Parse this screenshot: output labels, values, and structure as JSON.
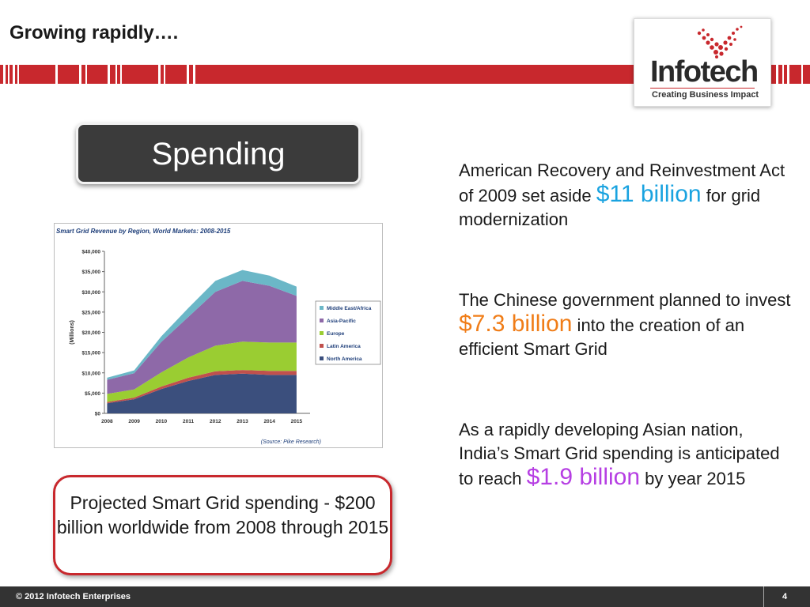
{
  "slide": {
    "title": "Growing rapidly….",
    "spending_label": "Spending",
    "projected_text": "Projected Smart Grid spending - $200 billion worldwide from 2008 through 2015",
    "footer_copyright": "© 2012 Infotech Enterprises",
    "page_number": "4"
  },
  "logo": {
    "name": "Infotech",
    "tagline": "Creating Business Impact",
    "icon": "checkmark-dots-icon",
    "brand_color": "#c8282d"
  },
  "bullets": [
    {
      "pre": "American Recovery and Reinvestment Act of 2009 set aside ",
      "highlight": "$11 billion",
      "post": " for grid modernization",
      "color": "#1aa3e0"
    },
    {
      "pre": "The Chinese government planned to invest ",
      "highlight": "$7.3 billion",
      "post": " into the creation of an efficient Smart Grid",
      "color": "#f07d18"
    },
    {
      "pre": "As a rapidly developing Asian nation, India’s Smart Grid spending is anticipated to reach ",
      "highlight": "$1.9 billion",
      "post": " by year 2015",
      "color": "#b63fe3"
    }
  ],
  "chart_data": {
    "type": "area",
    "title": "Smart Grid Revenue by Region, World Markets: 2008-2015",
    "ylabel": "(Millions)",
    "source": "(Source: Pike Research)",
    "x": [
      "2008",
      "2009",
      "2010",
      "2011",
      "2012",
      "2013",
      "2014",
      "2015"
    ],
    "ylim": [
      0,
      40000
    ],
    "yticks": [
      "$0",
      "$5,000",
      "$10,000",
      "$15,000",
      "$20,000",
      "$25,000",
      "$30,000",
      "$35,000",
      "$40,000"
    ],
    "stacked": true,
    "series": [
      {
        "name": "North America",
        "color": "#3b4f7d",
        "values": [
          2500,
          3500,
          6000,
          8000,
          9500,
          9800,
          9500,
          9500
        ]
      },
      {
        "name": "Latin America",
        "color": "#c0504d",
        "values": [
          300,
          400,
          600,
          800,
          900,
          900,
          1000,
          1000
        ]
      },
      {
        "name": "Europe",
        "color": "#9acd32",
        "values": [
          2000,
          2000,
          3500,
          5000,
          6300,
          7000,
          7000,
          7000
        ]
      },
      {
        "name": "Asia-Pacific",
        "color": "#8e69a8",
        "values": [
          3500,
          4000,
          7500,
          10000,
          13300,
          15000,
          14000,
          11500
        ]
      },
      {
        "name": "Middle East/Africa",
        "color": "#6bb7c7",
        "values": [
          500,
          700,
          1400,
          2200,
          2700,
          2700,
          2500,
          2300
        ]
      }
    ],
    "legend_order": [
      "Middle East/Africa",
      "Asia-Pacific",
      "Europe",
      "Latin America",
      "North America"
    ],
    "legend_position": "right",
    "grid": false
  }
}
